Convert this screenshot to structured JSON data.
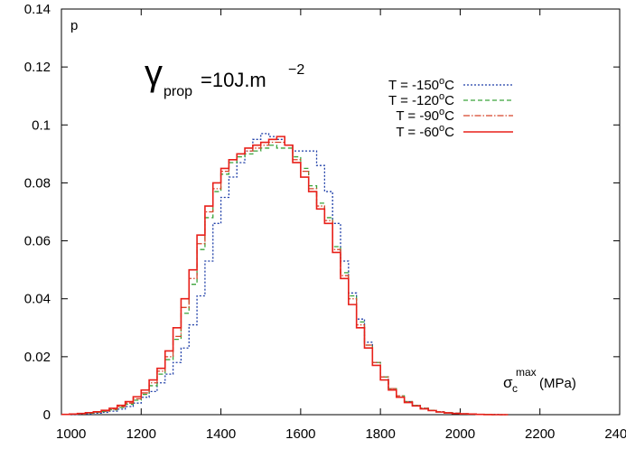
{
  "chart_data": {
    "type": "line",
    "step": true,
    "title_parts": {
      "symbol": "γ",
      "subscript": "prop",
      "value": "=10J.m",
      "superscript": "−2"
    },
    "ylabel": "p",
    "xlabel_parts": {
      "symbol": "σ",
      "subscript": "c",
      "superscript": "max",
      "unit": " (MPa)"
    },
    "xlim": [
      1000,
      2400
    ],
    "ylim": [
      0,
      0.14
    ],
    "xticks": [
      1000,
      1200,
      1400,
      1600,
      1800,
      2000,
      2200,
      2400
    ],
    "yticks": [
      0,
      0.02,
      0.04,
      0.06,
      0.08,
      0.1,
      0.12,
      0.14
    ],
    "ytick_labels": [
      "0",
      "0.02",
      "0.04",
      "0.06",
      "0.08",
      "0.1",
      "0.12",
      "0.14"
    ],
    "grid": false,
    "legend_position": "top-right",
    "x": [
      1000,
      1020,
      1040,
      1060,
      1080,
      1100,
      1120,
      1140,
      1160,
      1180,
      1200,
      1220,
      1240,
      1260,
      1280,
      1300,
      1320,
      1340,
      1360,
      1380,
      1400,
      1420,
      1440,
      1460,
      1480,
      1500,
      1520,
      1540,
      1560,
      1580,
      1600,
      1620,
      1640,
      1660,
      1680,
      1700,
      1720,
      1740,
      1760,
      1780,
      1800,
      1820,
      1840,
      1860,
      1880,
      1900,
      1920,
      1940,
      1960,
      1980,
      2000,
      2020,
      2040,
      2060,
      2080,
      2100
    ],
    "series": [
      {
        "name": "T = -150°C",
        "label_base": "T = -150",
        "color": "#1f3fa8",
        "dash": "2,2",
        "values": [
          0.0001,
          0.0001,
          0.0002,
          0.0003,
          0.0005,
          0.0008,
          0.0012,
          0.0019,
          0.0028,
          0.004,
          0.006,
          0.008,
          0.011,
          0.014,
          0.018,
          0.023,
          0.031,
          0.041,
          0.053,
          0.066,
          0.075,
          0.082,
          0.087,
          0.091,
          0.095,
          0.097,
          0.096,
          0.095,
          0.093,
          0.091,
          0.091,
          0.091,
          0.086,
          0.077,
          0.066,
          0.053,
          0.042,
          0.033,
          0.025,
          0.018,
          0.013,
          0.009,
          0.006,
          0.0045,
          0.0032,
          0.0022,
          0.0015,
          0.001,
          0.0007,
          0.0005,
          0.0003,
          0.0002,
          0.0001,
          0.0001,
          0.0001,
          0.0
        ]
      },
      {
        "name": "T = -120°C",
        "label_base": "T = -120",
        "color": "#3aa43a",
        "dash": "5,3",
        "values": [
          0.0001,
          0.0002,
          0.0003,
          0.0005,
          0.0008,
          0.0011,
          0.0017,
          0.0025,
          0.0036,
          0.005,
          0.007,
          0.01,
          0.014,
          0.019,
          0.026,
          0.035,
          0.045,
          0.057,
          0.068,
          0.077,
          0.083,
          0.087,
          0.089,
          0.09,
          0.091,
          0.092,
          0.093,
          0.092,
          0.092,
          0.089,
          0.085,
          0.079,
          0.073,
          0.068,
          0.058,
          0.049,
          0.041,
          0.032,
          0.024,
          0.018,
          0.013,
          0.009,
          0.0065,
          0.0045,
          0.0032,
          0.0022,
          0.0015,
          0.001,
          0.0007,
          0.0005,
          0.0003,
          0.0002,
          0.0001,
          0.0001,
          0.0,
          0.0
        ]
      },
      {
        "name": "T = -90°C",
        "label_base": "T = -90",
        "color": "#d6452a",
        "dash": "7,2,1.5,2",
        "values": [
          0.0001,
          0.0002,
          0.0003,
          0.0006,
          0.0009,
          0.0013,
          0.0019,
          0.0028,
          0.004,
          0.0055,
          0.0075,
          0.011,
          0.015,
          0.02,
          0.027,
          0.037,
          0.047,
          0.059,
          0.07,
          0.078,
          0.084,
          0.088,
          0.09,
          0.091,
          0.092,
          0.093,
          0.094,
          0.094,
          0.093,
          0.088,
          0.084,
          0.078,
          0.072,
          0.067,
          0.057,
          0.048,
          0.04,
          0.031,
          0.024,
          0.018,
          0.013,
          0.009,
          0.0065,
          0.0045,
          0.0032,
          0.0022,
          0.0015,
          0.001,
          0.0007,
          0.0005,
          0.0003,
          0.0002,
          0.0001,
          0.0001,
          0.0,
          0.0
        ]
      },
      {
        "name": "T = -60°C",
        "label_base": "T = -60",
        "color": "#e8201a",
        "dash": "",
        "values": [
          0.0001,
          0.0002,
          0.0004,
          0.0007,
          0.001,
          0.0015,
          0.0022,
          0.0032,
          0.0045,
          0.0062,
          0.0085,
          0.012,
          0.016,
          0.022,
          0.03,
          0.04,
          0.05,
          0.062,
          0.072,
          0.08,
          0.085,
          0.088,
          0.09,
          0.092,
          0.093,
          0.094,
          0.095,
          0.096,
          0.093,
          0.087,
          0.082,
          0.077,
          0.071,
          0.066,
          0.056,
          0.047,
          0.038,
          0.03,
          0.023,
          0.017,
          0.012,
          0.0085,
          0.006,
          0.0042,
          0.003,
          0.002,
          0.0014,
          0.0009,
          0.0006,
          0.0004,
          0.0003,
          0.0002,
          0.0001,
          0.0,
          0.0,
          0.0
        ]
      }
    ]
  }
}
